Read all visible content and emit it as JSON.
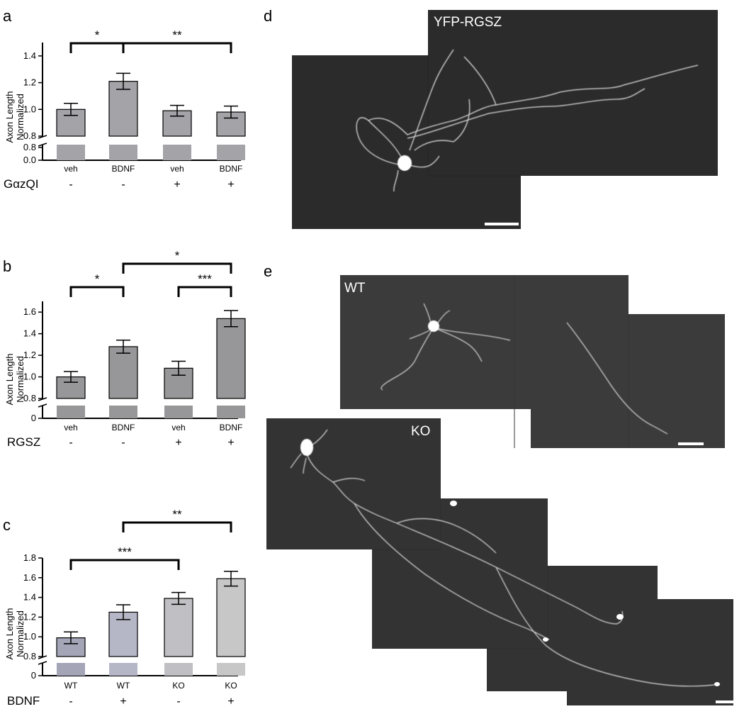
{
  "panel_labels": {
    "a": "a",
    "b": "b",
    "c": "c",
    "d": "d",
    "e": "e"
  },
  "chart_data": [
    {
      "panel": "a",
      "type": "bar",
      "ylabel": [
        "Axon Length",
        "Normalized"
      ],
      "ylim": [
        0.8,
        1.5
      ],
      "yticks": [
        "1.4",
        "1.2",
        "1.0",
        "0.8"
      ],
      "break_ticks": [
        "0.8",
        "0.0"
      ],
      "categories": [
        "veh",
        "BDNF",
        "veh",
        "BDNF"
      ],
      "factor_label": "GαzQI",
      "factor": [
        "-",
        "-",
        "+",
        "+"
      ],
      "values": [
        1.0,
        1.21,
        0.99,
        0.98
      ],
      "errors": [
        0.045,
        0.06,
        0.04,
        0.045
      ],
      "bar_color": "#a3a3a8",
      "significance": [
        {
          "from": 0,
          "to": 1,
          "label": "*"
        },
        {
          "from": 1,
          "to": 3,
          "label": "**"
        }
      ]
    },
    {
      "panel": "b",
      "type": "bar",
      "ylabel": [
        "Axon Length",
        "Normalized"
      ],
      "ylim": [
        0.8,
        1.7
      ],
      "yticks": [
        "1.6",
        "1.4",
        "1.2",
        "1.0",
        "0.8"
      ],
      "break_ticks": [
        "0"
      ],
      "categories": [
        "veh",
        "BDNF",
        "veh",
        "BDNF"
      ],
      "factor_label": "RGSZ",
      "factor": [
        "-",
        "-",
        "+",
        "+"
      ],
      "values": [
        1.0,
        1.28,
        1.08,
        1.54
      ],
      "errors": [
        0.05,
        0.06,
        0.065,
        0.075
      ],
      "bar_color": "#979799",
      "significance": [
        {
          "from": 0,
          "to": 1,
          "label": "*"
        },
        {
          "from": 1,
          "to": 3,
          "label": "*"
        },
        {
          "from": 2,
          "to": 3,
          "label": "***"
        }
      ]
    },
    {
      "panel": "c",
      "type": "bar",
      "ylabel": [
        "Axon Length",
        "Normalized"
      ],
      "ylim": [
        0.8,
        1.8
      ],
      "yticks": [
        "1.8",
        "1.6",
        "1.4",
        "1.2",
        "1.0",
        "0.8"
      ],
      "break_ticks": [
        "0"
      ],
      "categories": [
        "WT",
        "WT",
        "KO",
        "KO"
      ],
      "factor_label": "BDNF",
      "factor": [
        "-",
        "+",
        "-",
        "+"
      ],
      "values": [
        0.99,
        1.25,
        1.39,
        1.59
      ],
      "errors": [
        0.06,
        0.075,
        0.06,
        0.075
      ],
      "bar_colors": [
        "#a4a6b8",
        "#b6b7c6",
        "#c0c0c4",
        "#c7c7c7"
      ],
      "significance": [
        {
          "from": 1,
          "to": 3,
          "label": "**"
        },
        {
          "from": 0,
          "to": 2,
          "label": "***"
        }
      ]
    }
  ],
  "micrographs": {
    "d_label": "YFP-RGSZ",
    "e_wt_label": "WT",
    "e_ko_label": "KO"
  }
}
